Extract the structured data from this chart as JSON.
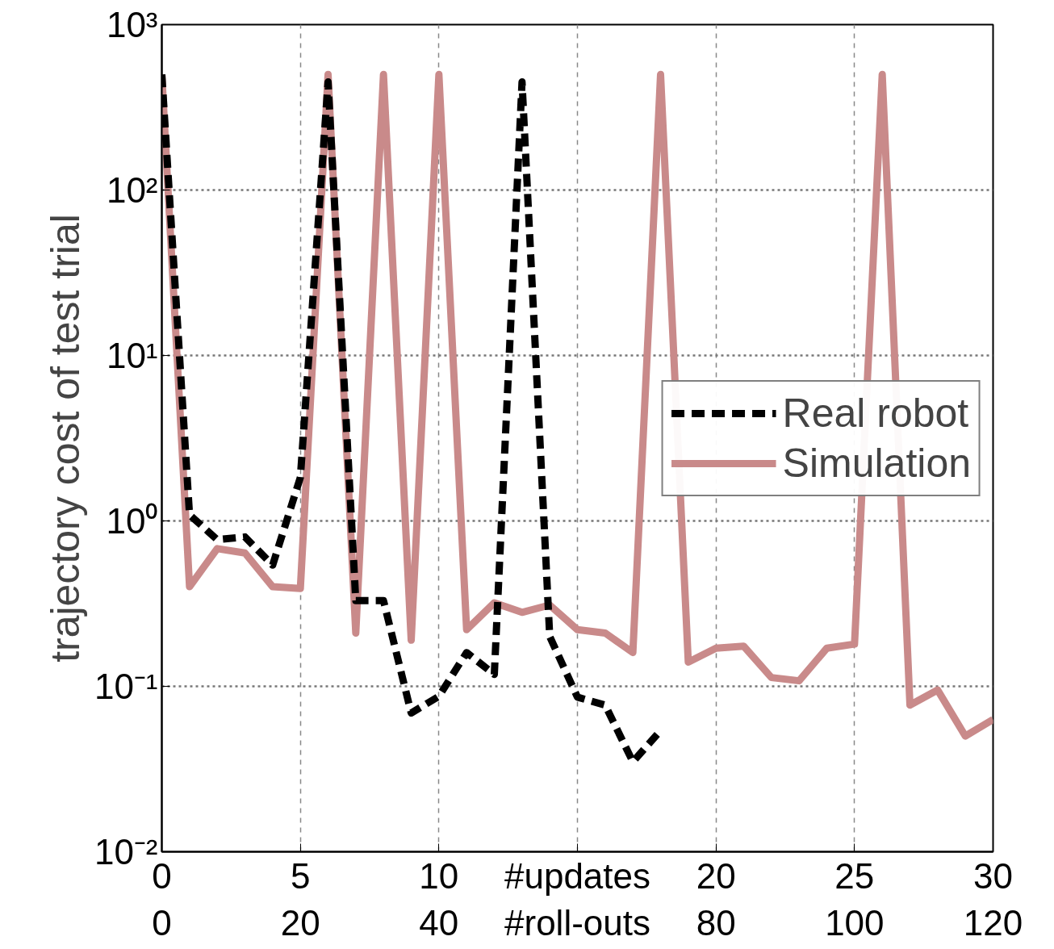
{
  "chart_data": {
    "type": "line",
    "ylabel": "trajectory cost of test trial",
    "log": "y",
    "grid": true,
    "legend": "right",
    "x": [
      0,
      1,
      2,
      3,
      4,
      5,
      6,
      7,
      8,
      9,
      10,
      11,
      12,
      13,
      14,
      15,
      16,
      17,
      18,
      19,
      20,
      21,
      22,
      23,
      24,
      25,
      26,
      27,
      28,
      29,
      30
    ],
    "xlim": [
      0,
      30
    ],
    "xticks": [
      0,
      5,
      10,
      {
        "value": 15,
        "label": "#updates"
      },
      20,
      25,
      30
    ],
    "x2lim": [
      0,
      120
    ],
    "x2ticks": [
      0,
      20,
      40,
      {
        "value": 60,
        "label": "#roll-outs"
      },
      80,
      100,
      120
    ],
    "ylim": [
      0.01,
      1000
    ],
    "yticks": [
      {
        "value": 0.01,
        "label": "10⁻²"
      },
      {
        "value": 0.1,
        "label": "10⁻¹"
      },
      {
        "value": 1,
        "label": "10⁰"
      },
      {
        "value": 10,
        "label": "10¹"
      },
      {
        "value": 100,
        "label": "10²"
      },
      {
        "value": 1000,
        "label": "10³"
      }
    ],
    "series": [
      {
        "name": "Real robot",
        "color": "#000000",
        "line_style": "dashed",
        "x": [
          0,
          1,
          2,
          3,
          4,
          5,
          6,
          7,
          8,
          9,
          10,
          11,
          12,
          13,
          14,
          15,
          16,
          17,
          18
        ],
        "values": [
          500,
          1.09,
          0.77,
          0.8,
          0.54,
          1.83,
          450,
          0.33,
          0.33,
          0.069,
          0.087,
          0.16,
          0.118,
          450,
          0.2,
          0.086,
          0.077,
          0.035,
          0.054
        ]
      },
      {
        "name": "Simulation",
        "color": "#c98a8a",
        "line_style": "solid",
        "values": [
          500,
          0.4,
          0.68,
          0.64,
          0.4,
          0.39,
          500,
          0.21,
          500,
          0.19,
          500,
          0.22,
          0.32,
          0.28,
          0.31,
          0.22,
          0.21,
          0.16,
          500,
          0.14,
          0.17,
          0.175,
          0.113,
          0.108,
          0.17,
          0.18,
          500,
          0.077,
          0.095,
          0.05,
          0.063
        ]
      }
    ]
  }
}
